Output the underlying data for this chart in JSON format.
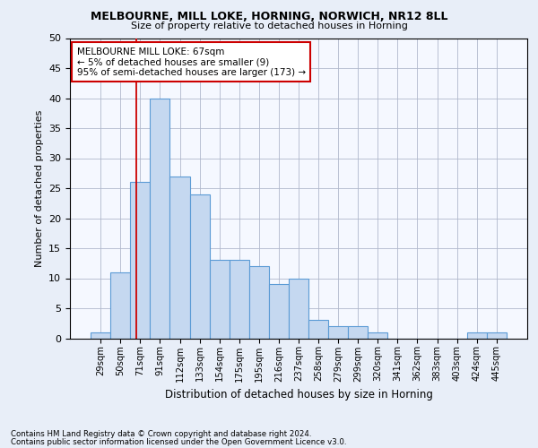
{
  "title1": "MELBOURNE, MILL LOKE, HORNING, NORWICH, NR12 8LL",
  "title2": "Size of property relative to detached houses in Horning",
  "xlabel": "Distribution of detached houses by size in Horning",
  "ylabel": "Number of detached properties",
  "categories": [
    "29sqm",
    "50sqm",
    "71sqm",
    "91sqm",
    "112sqm",
    "133sqm",
    "154sqm",
    "175sqm",
    "195sqm",
    "216sqm",
    "237sqm",
    "258sqm",
    "279sqm",
    "299sqm",
    "320sqm",
    "341sqm",
    "362sqm",
    "383sqm",
    "403sqm",
    "424sqm",
    "445sqm"
  ],
  "values": [
    1,
    11,
    26,
    40,
    27,
    24,
    13,
    13,
    12,
    9,
    10,
    3,
    2,
    2,
    1,
    0,
    0,
    0,
    0,
    1,
    1
  ],
  "bar_color": "#c5d8f0",
  "bar_edge_color": "#5b9bd5",
  "vline_color": "#cc0000",
  "annotation_text": "MELBOURNE MILL LOKE: 67sqm\n← 5% of detached houses are smaller (9)\n95% of semi-detached houses are larger (173) →",
  "annotation_box_color": "#ffffff",
  "annotation_box_edge_color": "#cc0000",
  "ylim": [
    0,
    50
  ],
  "yticks": [
    0,
    5,
    10,
    15,
    20,
    25,
    30,
    35,
    40,
    45,
    50
  ],
  "footnote1": "Contains HM Land Registry data © Crown copyright and database right 2024.",
  "footnote2": "Contains public sector information licensed under the Open Government Licence v3.0.",
  "bg_color": "#e8eef8",
  "plot_bg_color": "#f5f8ff"
}
